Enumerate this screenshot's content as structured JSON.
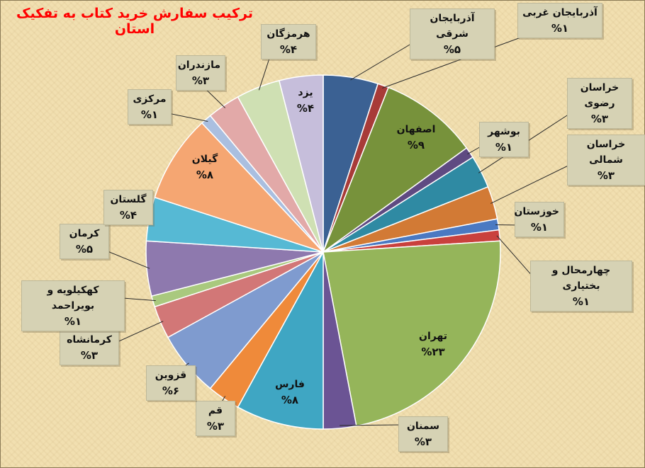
{
  "chart_data": {
    "type": "pie",
    "title": "ترکیب سفارش خرید کتاب به تفکیک استان",
    "slices": [
      {
        "name": "آذربایجان شرقی",
        "pct_label": "%۵",
        "value": 5,
        "color": "#3b6193"
      },
      {
        "name": "آذربایجان غربی",
        "pct_label": "%۱",
        "value": 1,
        "color": "#a83b38"
      },
      {
        "name": "اصفهان",
        "pct_label": "%۹",
        "value": 9,
        "color": "#77923b"
      },
      {
        "name": "بوشهر",
        "pct_label": "%۱",
        "value": 1,
        "color": "#5f4a82"
      },
      {
        "name": "خراسان رضوی",
        "pct_label": "%۳",
        "value": 3,
        "color": "#2f8aa3"
      },
      {
        "name": "خراسان شمالی",
        "pct_label": "%۳",
        "value": 3,
        "color": "#d27a35"
      },
      {
        "name": "خوزستان",
        "pct_label": "%۱",
        "value": 1,
        "color": "#4a79c2"
      },
      {
        "name": "چهارمحال و بختیاری",
        "pct_label": "%۱",
        "value": 1,
        "color": "#c9413d"
      },
      {
        "name": "تهران",
        "pct_label": "%۲۳",
        "value": 23,
        "color": "#95b55a"
      },
      {
        "name": "سمنان",
        "pct_label": "%۳",
        "value": 3,
        "color": "#6b5494"
      },
      {
        "name": "فارس",
        "pct_label": "%۸",
        "value": 8,
        "color": "#3fa6c3"
      },
      {
        "name": "قم",
        "pct_label": "%۳",
        "value": 3,
        "color": "#ef8a3a"
      },
      {
        "name": "قزوین",
        "pct_label": "%۶",
        "value": 6,
        "color": "#7f9bcf"
      },
      {
        "name": "کرمانشاه",
        "pct_label": "%۳",
        "value": 3,
        "color": "#d27777"
      },
      {
        "name": "کهکیلویه و بویراحمد",
        "pct_label": "%۱",
        "value": 1,
        "color": "#a9c97e"
      },
      {
        "name": "کرمان",
        "pct_label": "%۵",
        "value": 5,
        "color": "#8e79ae"
      },
      {
        "name": "گلستان",
        "pct_label": "%۴",
        "value": 4,
        "color": "#56b9d4"
      },
      {
        "name": "گیلان",
        "pct_label": "%۸",
        "value": 8,
        "color": "#f5a672"
      },
      {
        "name": "مرکزی",
        "pct_label": "%۱",
        "value": 1,
        "color": "#aabfe0"
      },
      {
        "name": "مازندران",
        "pct_label": "%۳",
        "value": 3,
        "color": "#e2a9a8"
      },
      {
        "name": "هرمزگان",
        "pct_label": "%۴",
        "value": 4,
        "color": "#cfe0b3"
      },
      {
        "name": "یزد",
        "pct_label": "%۴",
        "value": 4,
        "color": "#c6bedb"
      }
    ]
  }
}
